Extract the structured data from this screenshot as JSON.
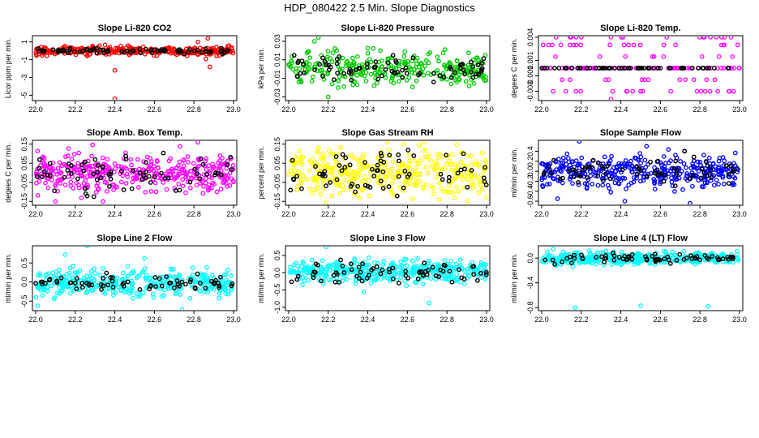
{
  "figure": {
    "title": "HDP_080422  2.5 Min. Slope Diagnostics"
  },
  "chart_data": [
    {
      "type": "scatter",
      "title": "Slope Li-820 CO2",
      "ylabel": "Licor ppm per min.",
      "color": "#ff0000",
      "xlim": [
        22.0,
        23.0
      ],
      "xticks": [
        "22.0",
        "22.2",
        "22.4",
        "22.6",
        "22.8",
        "23.0"
      ],
      "ylim": [
        -5.6,
        1.7
      ],
      "yticks": [
        {
          "v": 1,
          "label": "1"
        },
        {
          "v": -1,
          "label": "-1"
        },
        {
          "v": -3,
          "label": "-3"
        },
        {
          "v": -5,
          "label": "-5"
        }
      ],
      "series": [
        {
          "name": "all",
          "center": 0.0,
          "spread": 0.25,
          "count": 300
        },
        {
          "name": "highlight",
          "center": 0.0,
          "spread": 0.15,
          "count": 80
        }
      ],
      "outliers": [
        [
          22.4,
          -5.4
        ],
        [
          22.4,
          -2.2
        ],
        [
          22.87,
          1.4
        ],
        [
          22.82,
          1.0
        ],
        [
          22.88,
          -1.8
        ],
        [
          22.86,
          -0.9
        ]
      ]
    },
    {
      "type": "scatter",
      "title": "Slope Li-820 Pressure",
      "ylabel": "kPa per min.",
      "color": "#00cc00",
      "xlim": [
        22.0,
        23.0
      ],
      "xticks": [
        "22.0",
        "22.2",
        "22.4",
        "22.6",
        "22.8",
        "23.0"
      ],
      "ylim": [
        -0.034,
        0.036
      ],
      "yticks": [
        {
          "v": 0.03,
          "label": "0.03"
        },
        {
          "v": 0.01,
          "label": "0.01"
        },
        {
          "v": -0.01,
          "label": "-0.01"
        },
        {
          "v": -0.03,
          "label": "-0.03"
        }
      ],
      "series": [
        {
          "name": "all",
          "center": 0.0,
          "spread": 0.009,
          "count": 300
        },
        {
          "name": "highlight",
          "center": 0.0,
          "spread": 0.006,
          "count": 80
        }
      ],
      "outliers": [
        [
          22.15,
          0.034
        ],
        [
          22.2,
          -0.03
        ],
        [
          22.13,
          0.03
        ],
        [
          22.25,
          -0.02
        ],
        [
          22.4,
          0.017
        ]
      ]
    },
    {
      "type": "scatter",
      "title": "Slope Li-820 Temp.",
      "ylabel": "degees C per min.",
      "color": "#ff00ff",
      "xlim": [
        22.0,
        23.0
      ],
      "xticks": [
        "22.0",
        "22.2",
        "22.4",
        "22.6",
        "22.8",
        "23.0"
      ],
      "ylim": [
        -0.0042,
        0.0042
      ],
      "yticks": [
        {
          "v": 0.004,
          "label": "0.004"
        },
        {
          "v": 0.001,
          "label": "0.001"
        },
        {
          "v": -0.001,
          "label": "-0.001"
        },
        {
          "v": -0.003,
          "label": "-0.003"
        }
      ],
      "levels": [
        -0.003,
        -0.0015,
        0.0,
        0.0015,
        0.003,
        0.004
      ],
      "series": [
        {
          "name": "all",
          "center": 0.0,
          "spread": 0.0015,
          "count": 160
        },
        {
          "name": "highlight",
          "center": 0.0,
          "spread": 0.0,
          "count": 60
        }
      ],
      "outliers": [
        [
          22.2,
          0.004
        ],
        [
          22.35,
          -0.004
        ],
        [
          22.5,
          -0.003
        ]
      ]
    },
    {
      "type": "scatter",
      "title": "Slope Amb. Box Temp.",
      "ylabel": "degees C per min.",
      "color": "#ff00ff",
      "xlim": [
        22.0,
        23.0
      ],
      "xticks": [
        "22.0",
        "22.2",
        "22.4",
        "22.6",
        "22.8",
        "23.0"
      ],
      "ylim": [
        -0.17,
        0.17
      ],
      "yticks": [
        {
          "v": 0.15,
          "label": "0.15"
        },
        {
          "v": 0.05,
          "label": "0.05"
        },
        {
          "v": -0.05,
          "label": "-0.05"
        },
        {
          "v": -0.15,
          "label": "-0.15"
        }
      ],
      "series": [
        {
          "name": "all",
          "center": 0.0,
          "spread": 0.05,
          "count": 380
        },
        {
          "name": "highlight",
          "center": 0.0,
          "spread": 0.05,
          "count": 70
        }
      ],
      "outliers": [
        [
          22.82,
          0.16
        ],
        [
          22.1,
          -0.15
        ],
        [
          22.34,
          -0.15
        ]
      ]
    },
    {
      "type": "scatter",
      "title": "Slope Gas Stream RH",
      "ylabel": "percent per min.",
      "color": "#ffff00",
      "xlim": [
        22.0,
        23.0
      ],
      "xticks": [
        "22.0",
        "22.2",
        "22.4",
        "22.6",
        "22.8",
        "23.0"
      ],
      "ylim": [
        -0.17,
        0.17
      ],
      "yticks": [
        {
          "v": 0.15,
          "label": "0.15"
        },
        {
          "v": 0.05,
          "label": "0.05"
        },
        {
          "v": -0.05,
          "label": "-0.05"
        },
        {
          "v": -0.15,
          "label": "-0.15"
        }
      ],
      "series": [
        {
          "name": "all",
          "center": 0.0,
          "spread": 0.06,
          "count": 380
        },
        {
          "name": "highlight",
          "center": 0.0,
          "spread": 0.06,
          "count": 70
        }
      ],
      "outliers": [
        [
          22.58,
          0.15
        ],
        [
          23.0,
          -0.13
        ],
        [
          22.15,
          0.13
        ]
      ]
    },
    {
      "type": "scatter",
      "title": "Slope Sample Flow",
      "ylabel": "ml/min per min.",
      "color": "#0000ff",
      "xlim": [
        22.0,
        23.0
      ],
      "xticks": [
        "22.0",
        "22.2",
        "22.4",
        "22.6",
        "22.8",
        "23.0"
      ],
      "ylim": [
        -0.68,
        0.62
      ],
      "yticks": [
        {
          "v": 0.4,
          "label": "0.4"
        },
        {
          "v": 0.2,
          "label": "0.2"
        },
        {
          "v": 0.0,
          "label": "0.0"
        },
        {
          "v": -0.2,
          "label": "-0.2"
        },
        {
          "v": -0.4,
          "label": "-0.4"
        },
        {
          "v": -0.6,
          "label": "-0.6"
        }
      ],
      "series": [
        {
          "name": "all",
          "center": 0.0,
          "spread": 0.16,
          "count": 380
        },
        {
          "name": "highlight",
          "center": 0.0,
          "spread": 0.14,
          "count": 70
        }
      ],
      "outliers": [
        [
          22.19,
          0.6
        ],
        [
          22.08,
          -0.55
        ],
        [
          22.42,
          -0.6
        ],
        [
          22.53,
          0.5
        ],
        [
          22.75,
          -0.64
        ]
      ]
    },
    {
      "type": "scatter",
      "title": "Slope Line 2 Flow",
      "ylabel": "ml/min per min.",
      "color": "#00ffff",
      "xlim": [
        22.0,
        23.0
      ],
      "xticks": [
        "22.0",
        "22.2",
        "22.4",
        "22.6",
        "22.8",
        "23.0"
      ],
      "ylim": [
        -0.75,
        0.95
      ],
      "yticks": [
        {
          "v": 0.5,
          "label": "0.5"
        },
        {
          "v": 0.0,
          "label": "0.0"
        },
        {
          "v": -0.5,
          "label": "-0.5"
        }
      ],
      "series": [
        {
          "name": "all",
          "center": -0.03,
          "spread": 0.18,
          "count": 380
        },
        {
          "name": "highlight",
          "center": -0.03,
          "spread": 0.09,
          "count": 70
        }
      ],
      "outliers": [
        [
          22.26,
          0.95
        ],
        [
          22.74,
          -0.72
        ],
        [
          22.01,
          -0.62
        ],
        [
          22.15,
          0.72
        ],
        [
          22.55,
          0.62
        ]
      ]
    },
    {
      "type": "scatter",
      "title": "Slope Line 3 Flow",
      "ylabel": "ml/min per min.",
      "color": "#00ffff",
      "xlim": [
        22.0,
        23.0
      ],
      "xticks": [
        "22.0",
        "22.2",
        "22.4",
        "22.6",
        "22.8",
        "23.0"
      ],
      "ylim": [
        -1.1,
        0.78
      ],
      "yticks": [
        {
          "v": 0.5,
          "label": "0.5"
        },
        {
          "v": 0.0,
          "label": "0.0"
        },
        {
          "v": -0.5,
          "label": "-0.5"
        },
        {
          "v": -1.0,
          "label": "-1.0"
        }
      ],
      "series": [
        {
          "name": "all",
          "center": 0.05,
          "spread": 0.16,
          "count": 380
        },
        {
          "name": "highlight",
          "center": 0.0,
          "spread": 0.15,
          "count": 70
        }
      ],
      "outliers": [
        [
          22.71,
          -0.88
        ],
        [
          22.19,
          0.75
        ],
        [
          22.07,
          -0.35
        ],
        [
          22.38,
          -0.55
        ]
      ]
    },
    {
      "type": "scatter",
      "title": "Slope Line 4 (LT) Flow",
      "ylabel": "ml/min per min.",
      "color": "#00ffff",
      "xlim": [
        22.0,
        23.0
      ],
      "xticks": [
        "22.0",
        "22.2",
        "22.4",
        "22.6",
        "22.8",
        "23.0"
      ],
      "ylim": [
        -0.85,
        0.2
      ],
      "yticks": [
        {
          "v": 0.0,
          "label": "0.0"
        },
        {
          "v": -0.4,
          "label": "-0.4"
        },
        {
          "v": -0.8,
          "label": "-0.8"
        }
      ],
      "series": [
        {
          "name": "all",
          "center": 0.0,
          "spread": 0.05,
          "count": 380
        },
        {
          "name": "highlight",
          "center": 0.0,
          "spread": 0.04,
          "count": 70
        }
      ],
      "outliers": [
        [
          22.17,
          -0.8
        ],
        [
          22.5,
          -0.77
        ],
        [
          22.84,
          -0.78
        ]
      ]
    }
  ]
}
